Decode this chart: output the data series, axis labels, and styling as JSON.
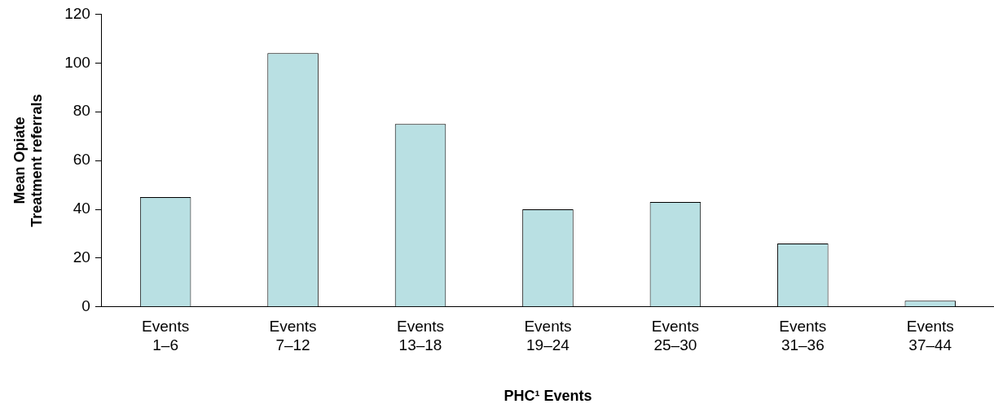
{
  "chart_data": {
    "type": "bar",
    "xlabel": "PHC¹ Events",
    "ylabel": "Mean Opiate\nTreatment referrals",
    "categories": [
      "Events\n1–6",
      "Events\n7–12",
      "Events\n13–18",
      "Events\n19–24",
      "Events\n25–30",
      "Events\n31–36",
      "Events\n37–44"
    ],
    "values": [
      45,
      104,
      75,
      40,
      43,
      26,
      2.5
    ],
    "color": "#b9e0e3",
    "ylim": [
      0,
      120
    ],
    "yticks": [
      0,
      20,
      40,
      60,
      80,
      100,
      120
    ],
    "grid": false,
    "legend": false
  }
}
